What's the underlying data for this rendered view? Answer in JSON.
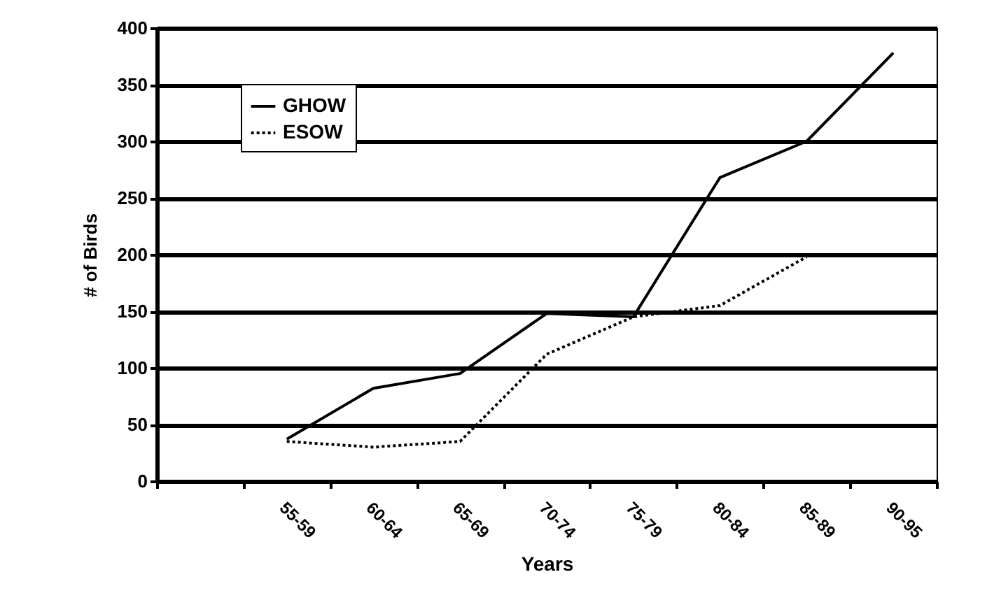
{
  "chart_data": {
    "type": "line",
    "xlabel": "Years",
    "ylabel": "# of Birds",
    "categories": [
      null,
      "55-59",
      "60-64",
      "65-69",
      "70-74",
      "75-79",
      "80-84",
      "85-89",
      "90-95"
    ],
    "series": [
      {
        "name": "GHOW",
        "color": "#000000",
        "line_style": "solid",
        "values": [
          null,
          37,
          82,
          95,
          148,
          145,
          268,
          300,
          378
        ]
      },
      {
        "name": "ESOW",
        "color": "#000000",
        "line_style": "dotted",
        "values": [
          null,
          35,
          30,
          35,
          112,
          145,
          155,
          198,
          null
        ]
      }
    ],
    "ylim": [
      0,
      400
    ],
    "yticks": [
      0,
      50,
      100,
      150,
      200,
      250,
      300,
      350,
      400
    ],
    "grid": "y",
    "legend": "top left",
    "marker": "none"
  }
}
